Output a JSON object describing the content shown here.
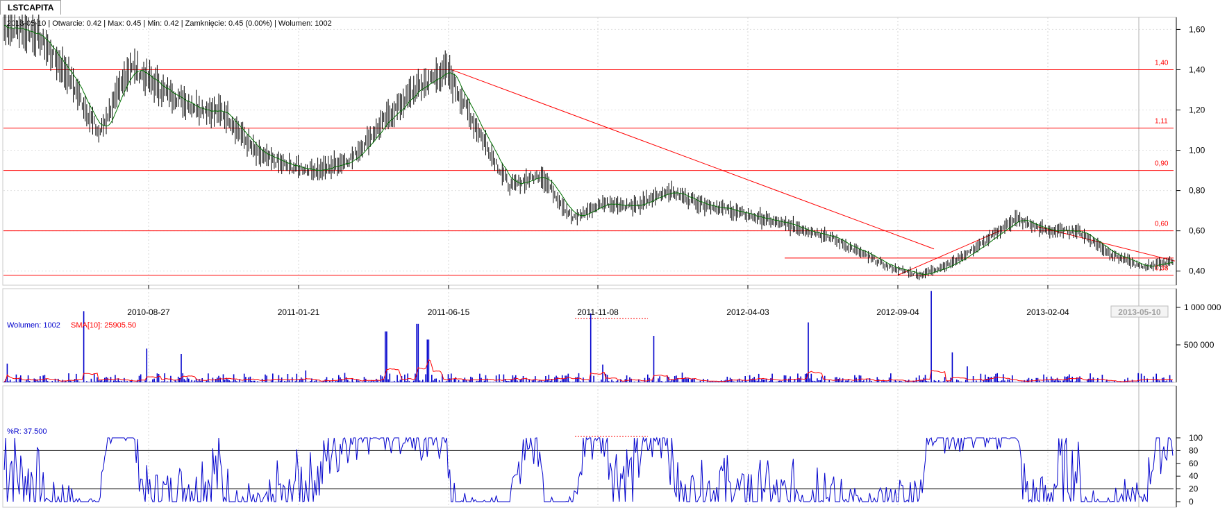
{
  "tab": {
    "label": "LSTCAPITA"
  },
  "price_panel": {
    "info": "2013-05-10 | Otwarcie: 0.42 | Max: 0.45 | Min: 0.42 | Zamknięcie: 0.45 (0.00%)  | Wolumen: 1002",
    "y_ticks": [
      "1,60",
      "1,40",
      "1,20",
      "1,00",
      "0,80",
      "0,60",
      "0,40"
    ],
    "x_dates": [
      "2010-08-27",
      "2011-01-21",
      "2011-06-15",
      "2011-11-08",
      "2012-04-03",
      "2012-09-04",
      "2013-02-04"
    ],
    "current_date": "2013-05-10",
    "level_labels": [
      "1,40",
      "1,11",
      "0,90",
      "0,60",
      "0,38"
    ]
  },
  "volume_panel": {
    "legend_volume": "Wolumen: 1002",
    "legend_sma": "SMA[10]: 25905.50",
    "y_ticks": [
      "1 000 000",
      "500 000"
    ]
  },
  "williams_panel": {
    "legend": "%R: 37.500",
    "y_ticks": [
      "100",
      "80",
      "60",
      "40",
      "20",
      "0"
    ]
  },
  "colors": {
    "price_bar": "#000000",
    "sma_line": "#007000",
    "level_line": "#ff0000",
    "volume_bar": "#0000cc",
    "volume_sma": "#ff0000",
    "wr_line": "#0000cc"
  },
  "chart_data": [
    {
      "type": "line",
      "name": "price",
      "x": [
        "2010-04",
        "2010-05",
        "2010-06",
        "2010-07",
        "2010-08",
        "2010-09",
        "2010-10",
        "2010-11",
        "2010-12",
        "2011-01",
        "2011-02",
        "2011-03",
        "2011-04",
        "2011-05",
        "2011-06",
        "2011-07",
        "2011-08",
        "2011-09",
        "2011-10",
        "2011-11",
        "2011-12",
        "2012-01",
        "2012-02",
        "2012-03",
        "2012-04",
        "2012-05",
        "2012-06",
        "2012-07",
        "2012-08",
        "2012-09",
        "2012-10",
        "2012-11",
        "2012-12",
        "2013-01",
        "2013-02",
        "2013-03",
        "2013-04",
        "2013-05"
      ],
      "values": [
        1.62,
        1.58,
        1.38,
        1.08,
        1.42,
        1.3,
        1.22,
        1.18,
        0.98,
        0.92,
        0.9,
        0.96,
        1.14,
        1.3,
        1.4,
        1.1,
        0.82,
        0.88,
        0.66,
        0.74,
        0.72,
        0.8,
        0.74,
        0.7,
        0.66,
        0.62,
        0.58,
        0.5,
        0.42,
        0.38,
        0.44,
        0.54,
        0.66,
        0.6,
        0.6,
        0.49,
        0.42,
        0.45
      ],
      "ylim": [
        0.33,
        1.66
      ],
      "levels": [
        1.4,
        1.11,
        0.9,
        0.6,
        0.38
      ]
    },
    {
      "type": "bar",
      "name": "volume",
      "ylim": [
        0,
        1250000
      ]
    },
    {
      "type": "line",
      "name": "williams_r",
      "ylim": [
        0,
        100
      ],
      "levels": [
        80,
        20
      ]
    }
  ]
}
